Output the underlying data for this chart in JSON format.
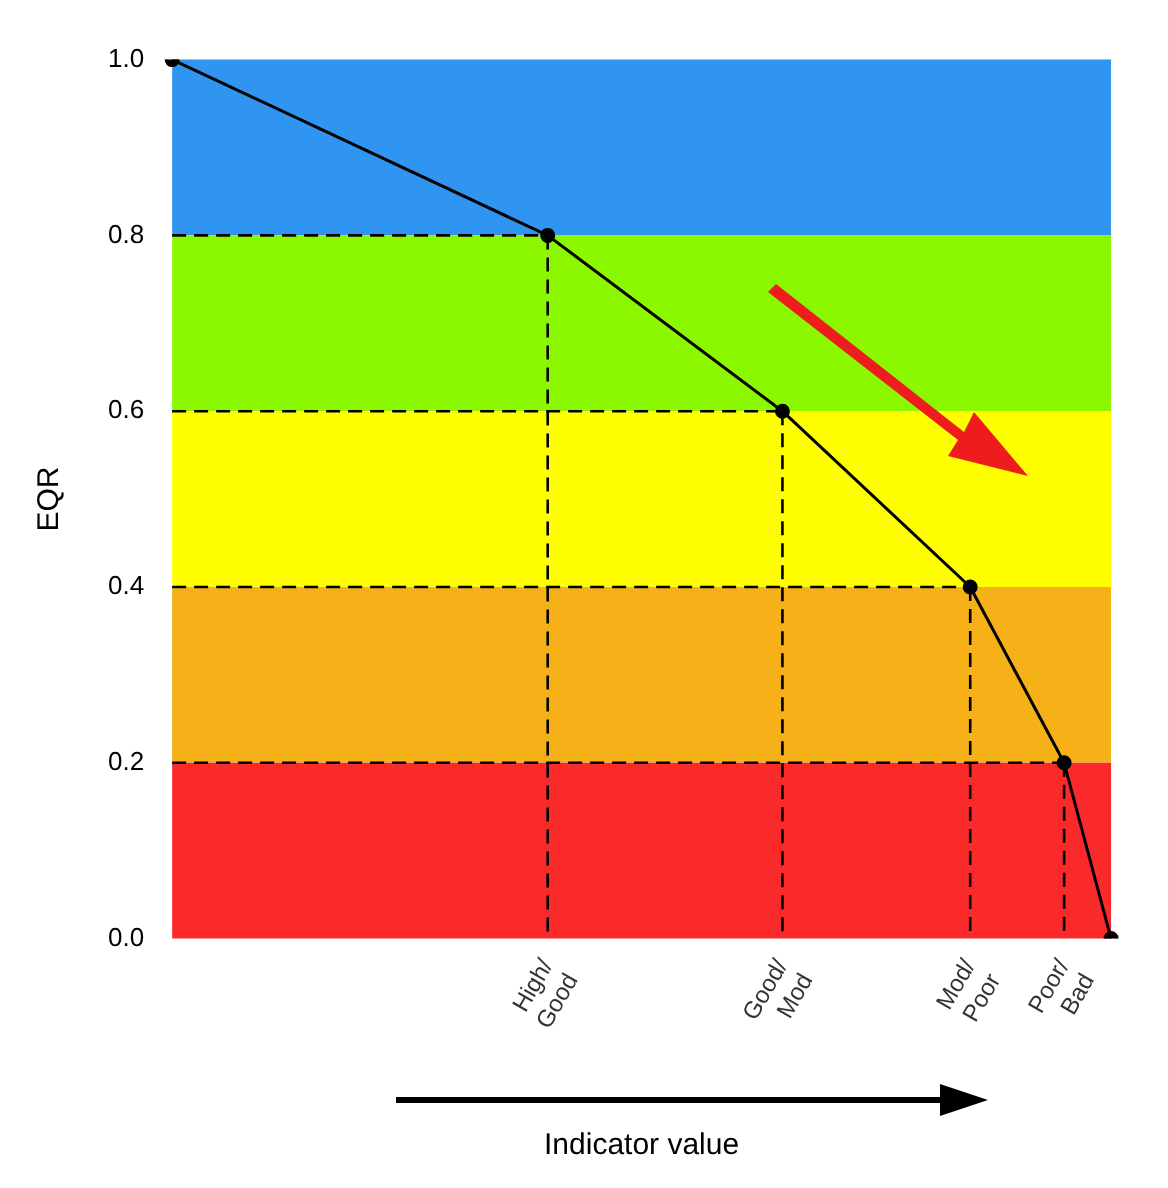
{
  "chart_data": {
    "type": "line",
    "ylabel": "EQR",
    "xlabel": "Indicator value",
    "ylim": [
      0,
      1
    ],
    "yticks": [
      {
        "value": 0,
        "label": "0.0"
      },
      {
        "value": 0.2,
        "label": "0.2"
      },
      {
        "value": 0.4,
        "label": "0.4"
      },
      {
        "value": 0.6,
        "label": "0.6"
      },
      {
        "value": 0.8,
        "label": "0.8"
      },
      {
        "value": 1,
        "label": "1.0"
      }
    ],
    "categories": [
      null,
      null,
      null,
      null,
      null,
      null,
      null,
      null,
      "High/ Good",
      null,
      null,
      null,
      null,
      "Good/ Mod",
      null,
      null,
      null,
      "Mod/ Poor",
      null,
      "Poor/ Bad",
      null
    ],
    "grid": false,
    "legend": false,
    "marker": "circle",
    "line_style": "solid",
    "bands": [
      {
        "axis": "y",
        "from": 0.8,
        "to": 1,
        "color": "#2f95f0"
      },
      {
        "axis": "y",
        "from": 0.6,
        "to": 0.8,
        "color": "#8cf800"
      },
      {
        "axis": "y",
        "from": 0.4,
        "to": 0.6,
        "color": "#ffff00"
      },
      {
        "axis": "y",
        "from": 0.2,
        "to": 0.4,
        "color": "#f6b119"
      },
      {
        "axis": "y",
        "from": 0,
        "to": 0.2,
        "color": "#fb2a2a"
      }
    ],
    "ref_lines": [
      {
        "axis": "y",
        "value": 0.8,
        "line_style": "dashed"
      },
      {
        "axis": "y",
        "value": 0.6,
        "line_style": "dashed"
      },
      {
        "axis": "y",
        "value": 0.4,
        "line_style": "dashed"
      },
      {
        "axis": "y",
        "value": 0.2,
        "line_style": "dashed"
      },
      {
        "axis": "x",
        "value": "High/ Good",
        "line_style": "dashed"
      },
      {
        "axis": "x",
        "value": "Good/ Mod",
        "line_style": "dashed"
      },
      {
        "axis": "x",
        "value": "Mod/ Poor",
        "line_style": "dashed"
      },
      {
        "axis": "x",
        "value": "Poor/ Bad",
        "line_style": "dashed"
      }
    ],
    "series": [
      {
        "color": "#000000",
        "values": [
          1,
          null,
          null,
          null,
          null,
          null,
          null,
          null,
          0.8,
          null,
          null,
          null,
          null,
          0.6,
          null,
          null,
          null,
          0.4,
          null,
          0.2,
          0
        ]
      }
    ]
  }
}
